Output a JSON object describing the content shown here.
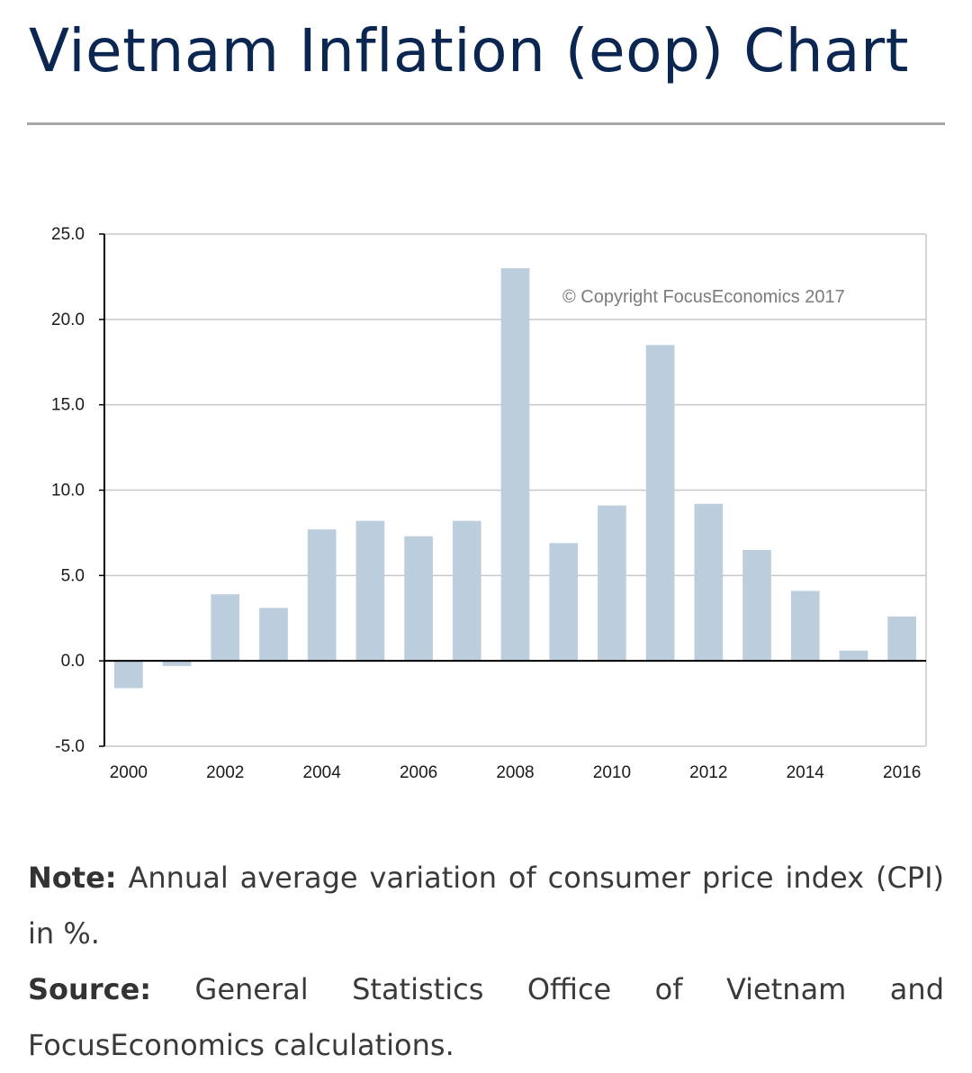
{
  "page": {
    "title": "Vietnam Inflation (eop) Chart",
    "note_label": "Note:",
    "note_text": "Annual average variation of consumer price index (CPI) in %.",
    "source_label": "Source:",
    "source_text": "General Statistics Office of Vietnam and FocusEconomics calculations."
  },
  "colors": {
    "title": "#0b2650",
    "bar": "#bccede",
    "grid": "#c8c8c8",
    "axis": "#000000"
  },
  "chart_data": {
    "type": "bar",
    "title": "",
    "xlabel": "",
    "ylabel": "",
    "copyright": "© Copyright FocusEconomics 2017",
    "categories": [
      "2000",
      "2001",
      "2002",
      "2003",
      "2004",
      "2005",
      "2006",
      "2007",
      "2008",
      "2009",
      "2010",
      "2011",
      "2012",
      "2013",
      "2014",
      "2015",
      "2016"
    ],
    "x_tick_labels": [
      "2000",
      "2002",
      "2004",
      "2006",
      "2008",
      "2010",
      "2012",
      "2014",
      "2016"
    ],
    "values": [
      -1.6,
      -0.3,
      3.9,
      3.1,
      7.7,
      8.2,
      7.3,
      8.2,
      23.0,
      6.9,
      9.1,
      18.5,
      9.2,
      6.5,
      4.1,
      0.6,
      2.6
    ],
    "ylim": [
      -5.0,
      25.0
    ],
    "y_ticks": [
      "-5.0",
      "0.0",
      "5.0",
      "10.0",
      "15.0",
      "20.0",
      "25.0"
    ],
    "grid": true
  }
}
